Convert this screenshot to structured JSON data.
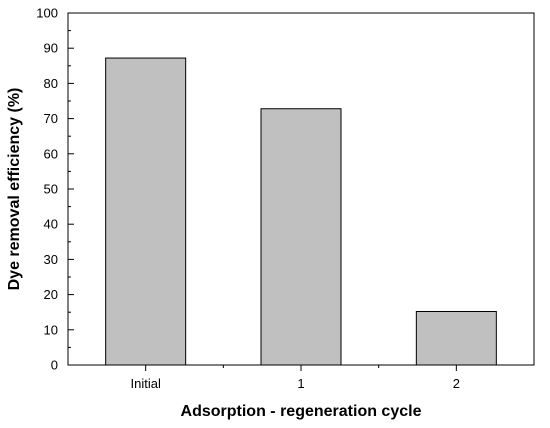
{
  "chart_data": {
    "type": "bar",
    "categories": [
      "Initial",
      "1",
      "2"
    ],
    "values": [
      87.2,
      72.8,
      15.2
    ],
    "title": "",
    "xlabel": "Adsorption - regeneration cycle",
    "ylabel": "Dye removal efficiency (%)",
    "ylim": [
      0,
      100
    ],
    "yticks": [
      0,
      10,
      20,
      30,
      40,
      50,
      60,
      70,
      80,
      90,
      100
    ],
    "ytick_labels": [
      "0",
      "10",
      "20",
      "30",
      "40",
      "50",
      "60",
      "70",
      "80",
      "90",
      "100"
    ],
    "grid": false,
    "legend": "none",
    "colors": {
      "bar_fill": "#c0c0c0",
      "bar_stroke": "#000000",
      "axis": "#000000"
    }
  }
}
